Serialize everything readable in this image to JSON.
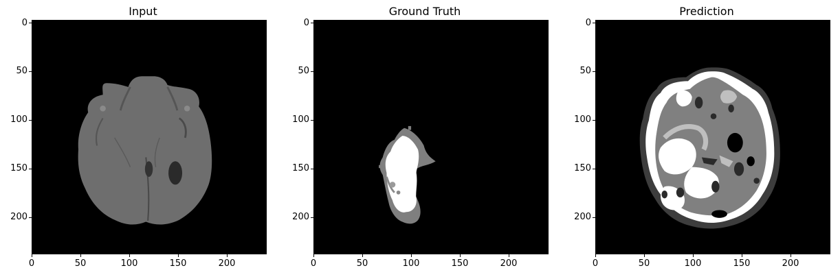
{
  "panels": [
    {
      "title": "Input",
      "xticks": [
        "0",
        "50",
        "100",
        "150",
        "200"
      ],
      "yticks": [
        "0",
        "50",
        "100",
        "150",
        "200"
      ]
    },
    {
      "title": "Ground Truth",
      "xticks": [
        "0",
        "50",
        "100",
        "150",
        "200"
      ],
      "yticks": [
        "0",
        "50",
        "100",
        "150",
        "200"
      ]
    },
    {
      "title": "Prediction",
      "xticks": [
        "0",
        "50",
        "100",
        "150",
        "200"
      ],
      "yticks": [
        "0",
        "50",
        "100",
        "150",
        "200"
      ]
    }
  ],
  "colors": {
    "background": "#000000",
    "brain_gray": "#6f6f6f",
    "label_dark_gray": "#3a3a3a",
    "label_mid_gray": "#7f7f7f",
    "label_light_gray": "#bfbfbf",
    "label_white": "#ffffff"
  }
}
